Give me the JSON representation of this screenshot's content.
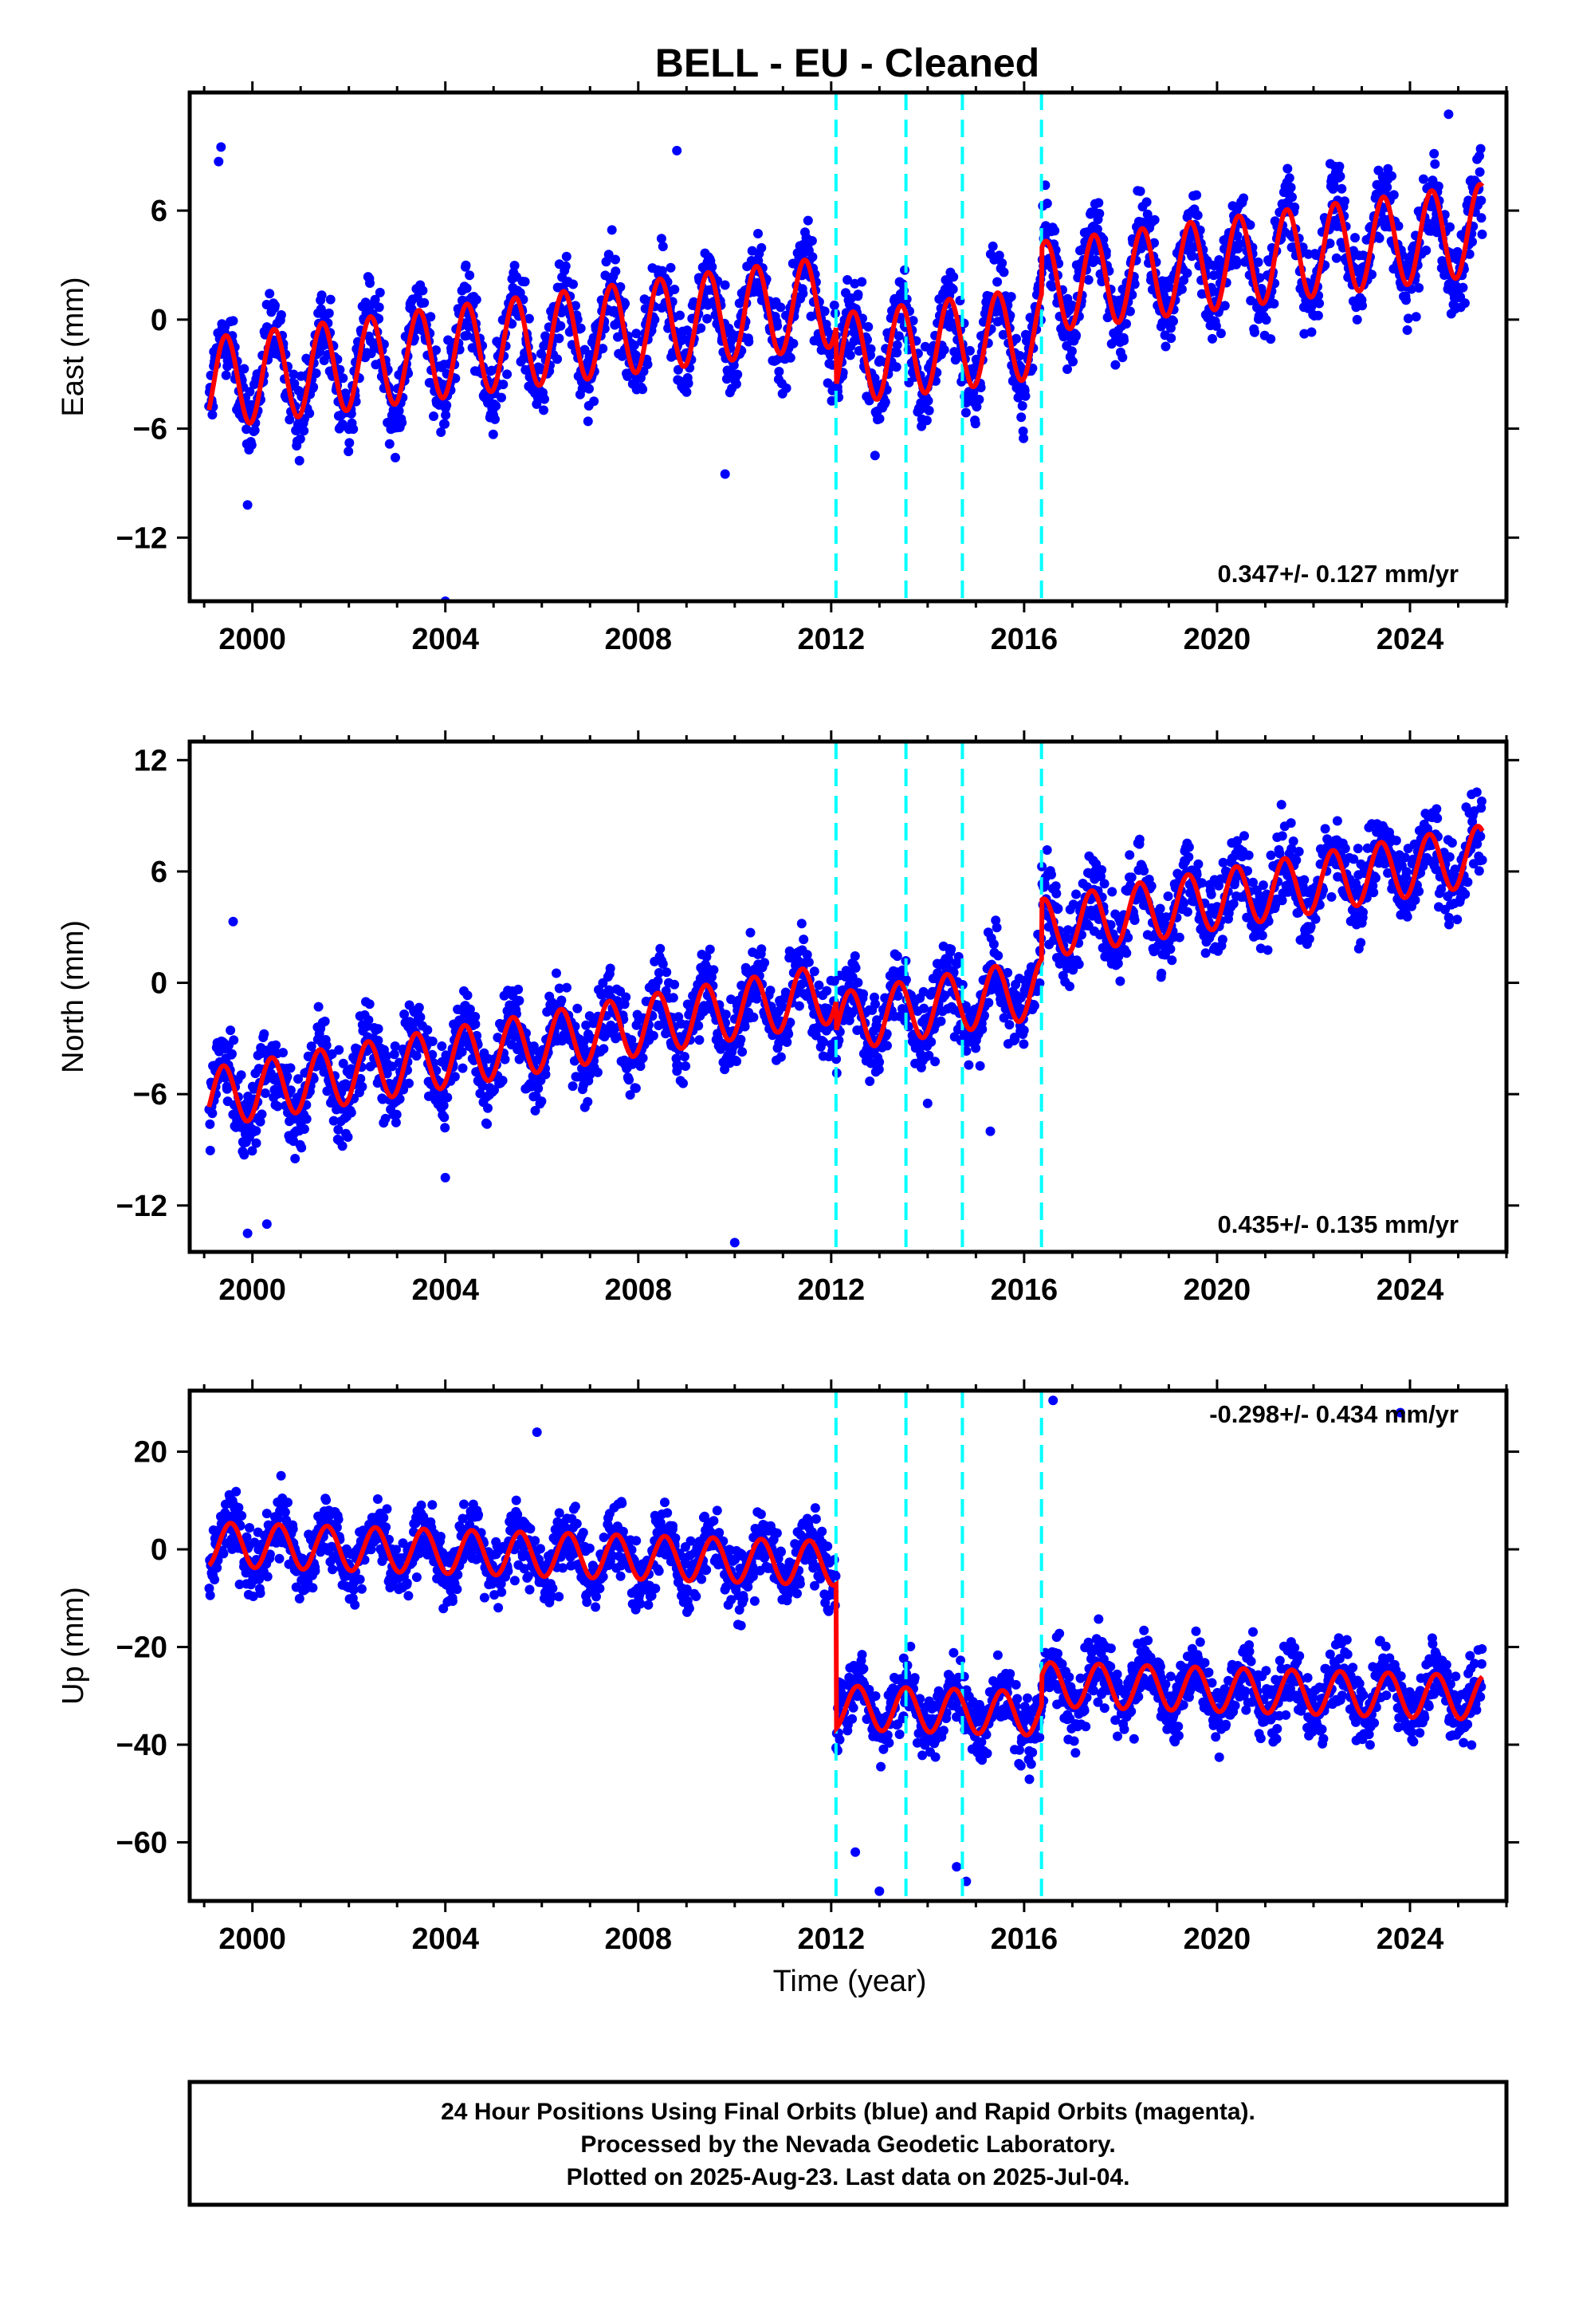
{
  "title": "BELL  - EU - Cleaned",
  "xlabel": "Time (year)",
  "footer": [
    "24 Hour Positions Using Final Orbits (blue) and Rapid Orbits (magenta).",
    "Processed by the Nevada Geodetic Laboratory.",
    "Plotted on 2025-Aug-23. Last data on 2025-Jul-04."
  ],
  "colors": {
    "points": "#0000ff",
    "model": "#ff0000",
    "breaks": "#00ffff",
    "frame": "#000000"
  },
  "chart_data": [
    {
      "type": "scatter",
      "ylabel": "East (mm)",
      "rate_text": "0.347+/- 0.127 mm/yr",
      "xlim": [
        1998.7,
        2026.0
      ],
      "ylim": [
        -15.5,
        12.5
      ],
      "xticks": [
        2000,
        2004,
        2008,
        2012,
        2016,
        2020,
        2024
      ],
      "yticks": [
        -12,
        -6,
        0,
        6
      ],
      "breaks": [
        2012.1,
        2013.55,
        2014.72,
        2016.36
      ],
      "data_range": [
        1999.1,
        2025.5
      ],
      "model": {
        "offset_at_start": -3.5,
        "offsets": [
          [
            2012.1,
            -3.2
          ],
          [
            2016.36,
            2.5
          ]
        ],
        "rate_mm_per_yr": 0.347,
        "annual_amplitude": 2.5,
        "peak_fraction_of_year": 0.45,
        "scatter": 1.6
      },
      "outliers": [
        [
          1999.35,
          9.5
        ],
        [
          1999.3,
          8.7
        ],
        [
          2008.8,
          9.3
        ],
        [
          2004.0,
          -15.5
        ],
        [
          1999.9,
          -10.2
        ],
        [
          2009.8,
          -8.5
        ],
        [
          2024.8,
          11.3
        ]
      ]
    },
    {
      "type": "scatter",
      "ylabel": "North (mm)",
      "rate_text": "0.435+/- 0.135 mm/yr",
      "xlim": [
        1998.7,
        2026.0
      ],
      "ylim": [
        -14.5,
        13.0
      ],
      "xticks": [
        2000,
        2004,
        2008,
        2012,
        2016,
        2020,
        2024
      ],
      "yticks": [
        -12,
        -6,
        0,
        6,
        12
      ],
      "breaks": [
        2012.1,
        2013.55,
        2014.72,
        2016.36
      ],
      "data_range": [
        1999.1,
        2025.5
      ],
      "model": {
        "offset_at_start": -6.2,
        "offsets": [
          [
            2012.1,
            -1.6
          ],
          [
            2016.36,
            3.2
          ]
        ],
        "rate_mm_per_yr": 0.435,
        "annual_amplitude": 1.6,
        "peak_fraction_of_year": 0.4,
        "scatter": 1.5
      },
      "outliers": [
        [
          1999.6,
          3.3
        ],
        [
          1999.9,
          -13.5
        ],
        [
          2000.3,
          -13.0
        ],
        [
          2010.0,
          -14.0
        ],
        [
          2014.0,
          -6.5
        ],
        [
          2015.3,
          -8.0
        ],
        [
          2004.0,
          -10.5
        ]
      ]
    },
    {
      "type": "scatter",
      "ylabel": "Up (mm)",
      "rate_text": "-0.298+/- 0.434 mm/yr",
      "xlim": [
        1998.7,
        2026.0
      ],
      "ylim": [
        -72.0,
        32.5
      ],
      "xticks": [
        2000,
        2004,
        2008,
        2012,
        2016,
        2020,
        2024
      ],
      "yticks": [
        -60,
        -40,
        -20,
        0,
        20
      ],
      "breaks": [
        2012.1,
        2013.55,
        2014.72,
        2016.36
      ],
      "data_range": [
        1999.1,
        2025.5
      ],
      "model": {
        "offset_at_start": 1.0,
        "offsets": [
          [
            2012.1,
            -29.5
          ],
          [
            2016.36,
            6.0
          ]
        ],
        "rate_mm_per_yr": -0.298,
        "annual_amplitude": 4.5,
        "peak_fraction_of_year": 0.55,
        "scatter": 5.0
      },
      "outliers": [
        [
          2005.9,
          24.0
        ],
        [
          2016.6,
          30.5
        ],
        [
          2013.0,
          -70.0
        ],
        [
          2014.8,
          -68.0
        ],
        [
          2014.6,
          -65.0
        ],
        [
          2012.5,
          -62.0
        ],
        [
          2023.8,
          28.0
        ]
      ]
    }
  ]
}
